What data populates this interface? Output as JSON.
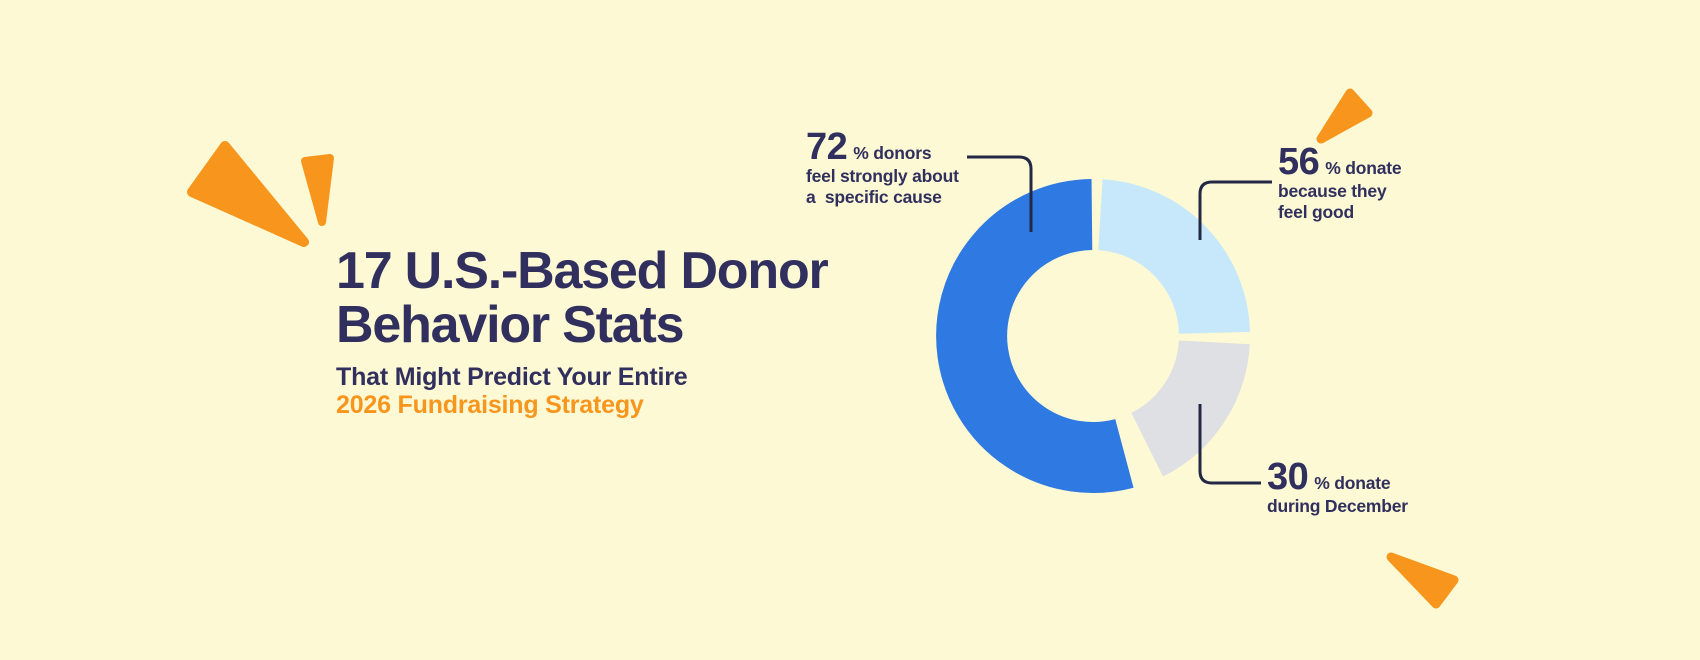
{
  "page": {
    "background": "#FCF9D4"
  },
  "colors": {
    "bg": "#FCF9D4",
    "navy": "#302F5E",
    "orange": "#F8951D",
    "line": "#232845",
    "blue": "#2E79E2",
    "light_blue": "#C7E8FB",
    "gray": "#DEE0E4"
  },
  "title": {
    "line1": "17 U.S.-Based Donor",
    "line2": "Behavior Stats",
    "subtitle_line1": "That Might Predict Your Entire",
    "subtitle_line2": "2026 Fundraising Strategy"
  },
  "chart_data": {
    "type": "pie",
    "subtype": "donut",
    "title": "17 U.S.-Based Donor Behavior Stats",
    "legend_position": "callout-labels",
    "note": "arc spans are decorative, not proportional to the percentages",
    "segments": [
      {
        "name": "donors feel strongly about a specific cause",
        "value_pct": 72,
        "color": "#2E79E2",
        "start_deg": 165,
        "end_deg": 359.5
      },
      {
        "name": "donate because they feel good",
        "value_pct": 56,
        "color": "#C7E8FB",
        "start_deg": 3.5,
        "end_deg": 88.5
      },
      {
        "name": "donate during December",
        "value_pct": 30,
        "color": "#DEE0E4",
        "start_deg": 93,
        "end_deg": 153.5
      }
    ]
  },
  "callouts": [
    {
      "number": "72",
      "unit": "% donors",
      "lines": [
        "feel strongly about",
        "a  specific cause"
      ]
    },
    {
      "number": "56",
      "unit": "% donate",
      "lines": [
        "because they",
        "feel good"
      ]
    },
    {
      "number": "30",
      "unit": "% donate",
      "lines": [
        "during December"
      ]
    }
  ]
}
